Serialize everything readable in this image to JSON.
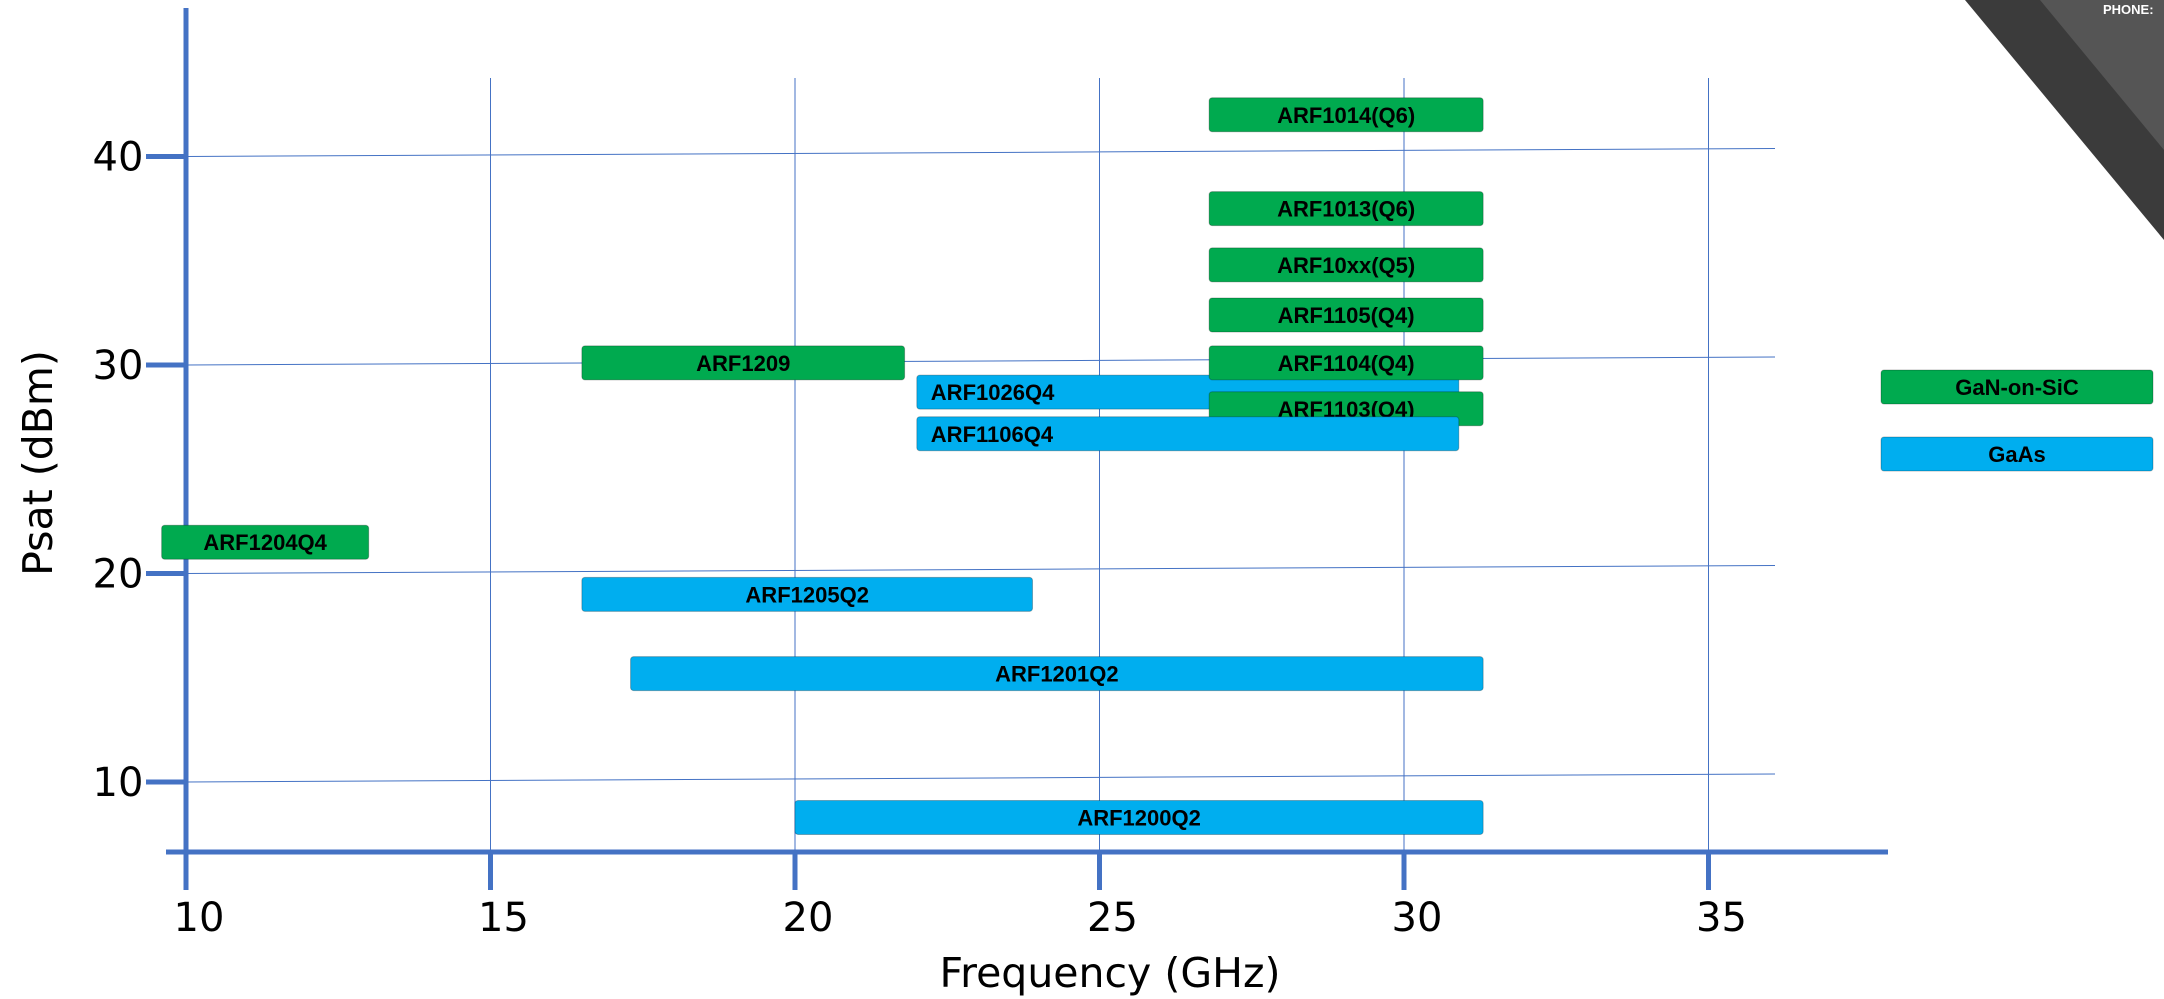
{
  "colors": {
    "green": "#00aa4f",
    "blue": "#00aeef",
    "axis": "#4472c4",
    "grid": "#4472c4",
    "corner_dark": "#3b3b3b",
    "corner_light": "#5a5a5a"
  },
  "corner": {
    "text": "PHONE:"
  },
  "chart_data": {
    "type": "bar",
    "orientation": "horizontal-range",
    "xlabel": "Frequency (GHz)",
    "ylabel": "Psat (dBm)",
    "xlim": [
      10,
      38
    ],
    "ylim": [
      7,
      47
    ],
    "xticks": [
      10,
      15,
      20,
      25,
      30,
      35
    ],
    "yticks": [
      10,
      20,
      30,
      40
    ],
    "grid": true,
    "legend": {
      "position": "right",
      "entries": [
        {
          "label": "GaN-on-SiC",
          "color": "#00aa4f"
        },
        {
          "label": "GaAs",
          "color": "#00aeef"
        }
      ]
    },
    "bars": [
      {
        "label": "ARF1014(Q6)",
        "tech": "GaN-on-SiC",
        "x_start": 26.8,
        "x_end": 31.3,
        "psat": 42,
        "align": "center"
      },
      {
        "label": "ARF1013(Q6)",
        "tech": "GaN-on-SiC",
        "x_start": 26.8,
        "x_end": 31.3,
        "psat": 37.5,
        "align": "center"
      },
      {
        "label": "ARF10xx(Q5)",
        "tech": "GaN-on-SiC",
        "x_start": 26.8,
        "x_end": 31.3,
        "psat": 34.8,
        "align": "center"
      },
      {
        "label": "ARF1105(Q4)",
        "tech": "GaN-on-SiC",
        "x_start": 26.8,
        "x_end": 31.3,
        "psat": 32.4,
        "align": "center"
      },
      {
        "label": "ARF1209",
        "tech": "GaN-on-SiC",
        "x_start": 16.5,
        "x_end": 21.8,
        "psat": 30.1,
        "align": "center"
      },
      {
        "label": "ARF1026Q4",
        "tech": "GaAs",
        "x_start": 22.0,
        "x_end": 30.9,
        "psat": 28.7,
        "align": "left"
      },
      {
        "label": "ARF1104(Q4)",
        "tech": "GaN-on-SiC",
        "x_start": 26.8,
        "x_end": 31.3,
        "psat": 30.1,
        "align": "center"
      },
      {
        "label": "ARF1103(Q4)",
        "tech": "GaN-on-SiC",
        "x_start": 26.8,
        "x_end": 31.3,
        "psat": 27.9,
        "align": "center"
      },
      {
        "label": "ARF1106Q4",
        "tech": "GaAs",
        "x_start": 22.0,
        "x_end": 30.9,
        "psat": 26.7,
        "align": "left"
      },
      {
        "label": "ARF1204Q4",
        "tech": "GaN-on-SiC",
        "x_start": 9.6,
        "x_end": 13.0,
        "psat": 21.5,
        "align": "center"
      },
      {
        "label": "ARF1205Q2",
        "tech": "GaAs",
        "x_start": 16.5,
        "x_end": 23.9,
        "psat": 19.0,
        "align": "center"
      },
      {
        "label": "ARF1201Q2",
        "tech": "GaAs",
        "x_start": 17.3,
        "x_end": 31.3,
        "psat": 15.2,
        "align": "center"
      },
      {
        "label": "ARF1200Q2",
        "tech": "GaAs",
        "x_start": 20.0,
        "x_end": 31.3,
        "psat": 8.3,
        "align": "center"
      }
    ]
  }
}
